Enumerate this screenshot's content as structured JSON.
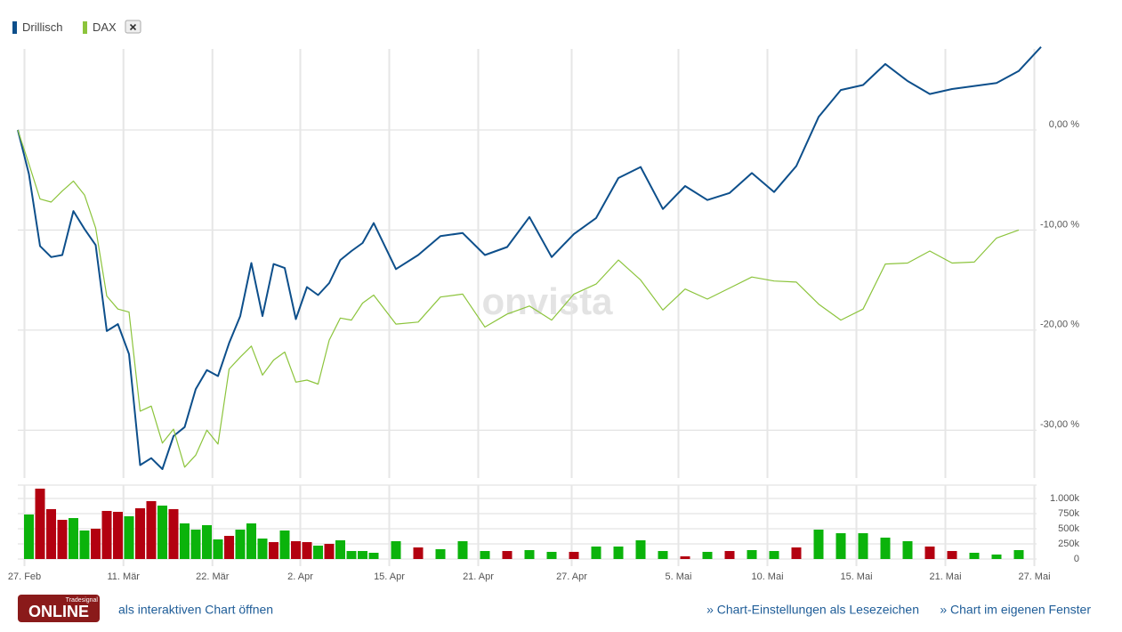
{
  "chart_data": [
    {
      "type": "line",
      "x": [
        0,
        1,
        2,
        3,
        4,
        5,
        6,
        7,
        8,
        9,
        10,
        11,
        12,
        13,
        14,
        15,
        16,
        17,
        18,
        19,
        20,
        21,
        22,
        23,
        24,
        25,
        26,
        27,
        28,
        29,
        30,
        31,
        32,
        34,
        36,
        38,
        40,
        42,
        44,
        46,
        48,
        50,
        52,
        54,
        56,
        58,
        60,
        62,
        64,
        66,
        68,
        70,
        72,
        74,
        76,
        78,
        80,
        82,
        84,
        86,
        88,
        90,
        92
      ],
      "series": [
        {
          "name": "Drillisch",
          "color": "#0d4f8b",
          "values": [
            0,
            -4.4,
            -11.6,
            -12.7,
            -12.5,
            -8.1,
            -9.9,
            -11.5,
            -20.1,
            -19.4,
            -22.4,
            -33.5,
            -32.8,
            -33.9,
            -30.6,
            -29.7,
            -25.9,
            -24.0,
            -24.6,
            -21.3,
            -18.6,
            -13.3,
            -18.6,
            -13.4,
            -13.8,
            -18.9,
            -15.7,
            -16.5,
            -15.3,
            -13.0,
            -12.1,
            -11.3,
            -9.3,
            -13.9,
            -12.5,
            -10.6,
            -10.3,
            -12.5,
            -11.7,
            -8.7,
            -12.7,
            -10.4,
            -8.8,
            -4.8,
            -3.7,
            -7.9,
            -5.6,
            -7.0,
            -6.3,
            -4.3,
            -6.2,
            -3.6,
            1.3,
            4.0,
            4.5,
            6.6,
            4.9,
            3.6,
            4.1,
            4.4,
            4.7,
            5.9,
            8.3
          ]
        },
        {
          "name": "DAX",
          "color": "#8cc43c",
          "values": [
            0,
            -3.4,
            -6.9,
            -7.2,
            -6.1,
            -5.1,
            -6.5,
            -9.8,
            -16.6,
            -17.9,
            -18.2,
            -28.1,
            -27.6,
            -31.3,
            -29.9,
            -33.7,
            -32.5,
            -30.0,
            -31.4,
            -23.9,
            -22.7,
            -21.6,
            -24.5,
            -23.0,
            -22.2,
            -25.2,
            -25.0,
            -25.4,
            -21.0,
            -18.8,
            -19.0,
            -17.3,
            -16.5,
            -19.4,
            -19.2,
            -16.7,
            -16.4,
            -19.7,
            -18.4,
            -17.6,
            -19.0,
            -16.4,
            -15.4,
            -13.0,
            -15.0,
            -18.0,
            -15.9,
            -16.9,
            -15.8,
            -14.7,
            -15.1,
            -15.2,
            -17.4,
            -19.0,
            -17.9,
            -13.4,
            -13.3,
            -12.1,
            -13.3,
            -13.2,
            -10.8,
            -10.0,
            null
          ]
        }
      ],
      "xlim": [
        0,
        92
      ],
      "ylim": [
        -35,
        8.5
      ],
      "xticks": [
        {
          "value": 0.6,
          "label": "27. Feb"
        },
        {
          "value": 9.5,
          "label": "11. Mär"
        },
        {
          "value": 17.5,
          "label": "22. Mär"
        },
        {
          "value": 25.4,
          "label": "2. Apr"
        },
        {
          "value": 33.4,
          "label": "15. Apr"
        },
        {
          "value": 41.4,
          "label": "21. Apr"
        },
        {
          "value": 49.8,
          "label": "27. Apr"
        },
        {
          "value": 59.4,
          "label": "5. Mai"
        },
        {
          "value": 67.4,
          "label": "10. Mai"
        },
        {
          "value": 75.4,
          "label": "15. Mai"
        },
        {
          "value": 83.4,
          "label": "21. Mai"
        },
        {
          "value": 91.4,
          "label": "27. Mai"
        }
      ],
      "yticks": [
        {
          "value": 0,
          "label": "0,00 %"
        },
        {
          "value": -10,
          "label": "-10,00 %"
        },
        {
          "value": -20,
          "label": "-20,00 %"
        },
        {
          "value": -30,
          "label": "-30,00 %"
        }
      ],
      "grid": true
    },
    {
      "type": "bar",
      "x": [
        1,
        2,
        3,
        4,
        5,
        6,
        7,
        8,
        9,
        10,
        11,
        12,
        13,
        14,
        15,
        16,
        17,
        18,
        19,
        20,
        21,
        22,
        23,
        24,
        25,
        26,
        27,
        28,
        29,
        30,
        31,
        32,
        34,
        36,
        38,
        40,
        42,
        44,
        46,
        48,
        50,
        52,
        54,
        56,
        58,
        60,
        62,
        64,
        66,
        68,
        70,
        72,
        74,
        76,
        78,
        80,
        82,
        84,
        86,
        88,
        90
      ],
      "values": [
        735000,
        1162000,
        824000,
        647000,
        676000,
        471000,
        500000,
        794000,
        779000,
        706000,
        838000,
        956000,
        882000,
        824000,
        588000,
        485000,
        559000,
        324000,
        382000,
        485000,
        588000,
        338000,
        279000,
        471000,
        294000,
        279000,
        221000,
        250000,
        309000,
        132000,
        132000,
        103000,
        294000,
        191000,
        162000,
        294000,
        132000,
        132000,
        147000,
        118000,
        118000,
        206000,
        206000,
        309000,
        132000,
        44000,
        118000,
        132000,
        147000,
        132000,
        191000,
        485000,
        426000,
        426000,
        353000,
        294000,
        206000,
        132000,
        103000,
        74000,
        147000
      ],
      "colors": [
        "#0bb30b",
        "#b30010",
        "#b30010",
        "#b30010",
        "#0bb30b",
        "#0bb30b",
        "#b30010",
        "#b30010",
        "#b30010",
        "#0bb30b",
        "#b30010",
        "#b30010",
        "#0bb30b",
        "#b30010",
        "#0bb30b",
        "#0bb30b",
        "#0bb30b",
        "#0bb30b",
        "#b30010",
        "#0bb30b",
        "#0bb30b",
        "#0bb30b",
        "#b30010",
        "#0bb30b",
        "#b30010",
        "#b30010",
        "#0bb30b",
        "#b30010",
        "#0bb30b",
        "#0bb30b",
        "#0bb30b",
        "#0bb30b",
        "#0bb30b",
        "#b30010",
        "#0bb30b",
        "#0bb30b",
        "#0bb30b",
        "#b30010",
        "#0bb30b",
        "#0bb30b",
        "#b30010",
        "#0bb30b",
        "#0bb30b",
        "#0bb30b",
        "#0bb30b",
        "#b30010",
        "#0bb30b",
        "#b30010",
        "#0bb30b",
        "#0bb30b",
        "#b30010",
        "#0bb30b",
        "#0bb30b",
        "#0bb30b",
        "#0bb30b",
        "#0bb30b",
        "#b30010",
        "#b30010",
        "#0bb30b",
        "#0bb30b",
        "#0bb30b"
      ],
      "xlim": [
        0,
        92
      ],
      "ylim": [
        0,
        1220000
      ],
      "yticks": [
        0,
        {
          "value": 250000,
          "label": "250k"
        },
        {
          "value": 500000,
          "label": "500k"
        },
        {
          "value": 750000,
          "label": "750k"
        },
        {
          "value": 1000000,
          "label": "1.000k"
        }
      ],
      "grid": true
    }
  ],
  "watermark": "onvista",
  "logo": {
    "brand": "Tradesignal",
    "text": "ONLINE"
  },
  "links": [
    "als interaktiven Chart öffnen",
    "» Chart-Einstellungen als Lesezeichen",
    "» Chart im eigenen Fenster"
  ]
}
